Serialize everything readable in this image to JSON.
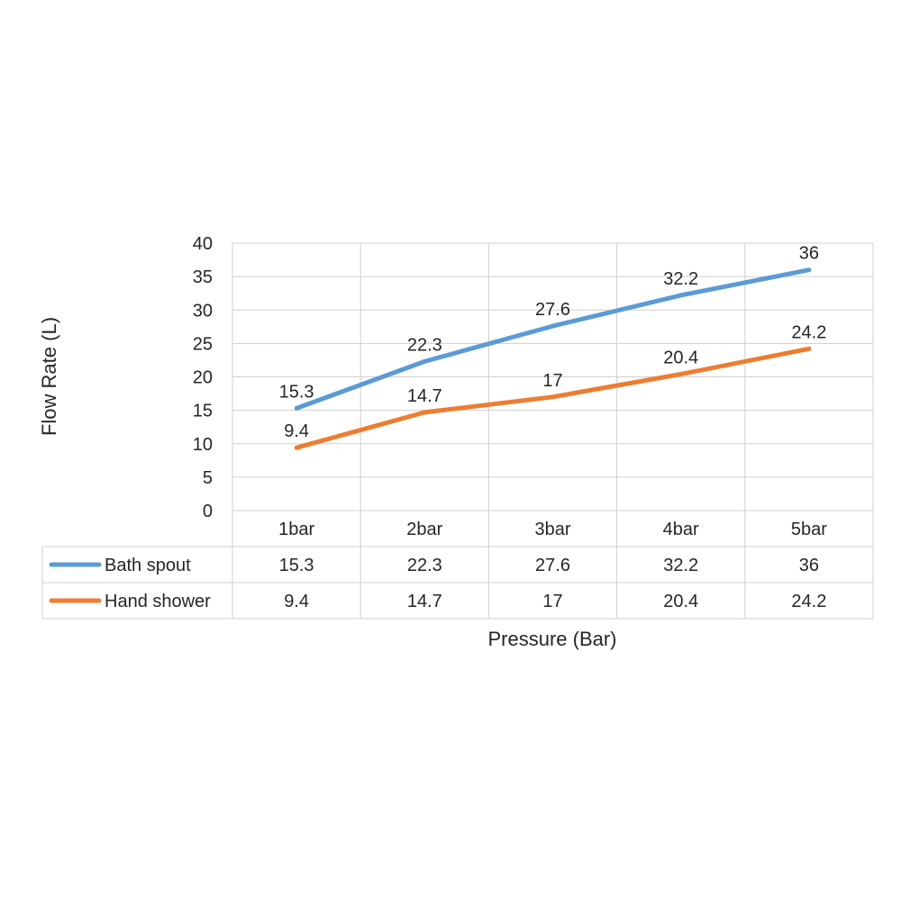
{
  "chart_data": {
    "type": "line",
    "title": "",
    "xlabel": "Pressure (Bar)",
    "ylabel": "Flow Rate (L)",
    "categories": [
      "1bar",
      "2bar",
      "3bar",
      "4bar",
      "5bar"
    ],
    "ylim": [
      0,
      40
    ],
    "yticks": [
      "0",
      "5",
      "10",
      "15",
      "20",
      "25",
      "30",
      "35",
      "40"
    ],
    "grid": true,
    "legend": "data-table",
    "series": [
      {
        "name": "Bath spout",
        "color": "#5B9BD5",
        "values": [
          15.3,
          22.3,
          27.6,
          32.2,
          36
        ],
        "labels": [
          "15.3",
          "22.3",
          "27.6",
          "32.2",
          "36"
        ]
      },
      {
        "name": "Hand shower",
        "color": "#ED7D31",
        "values": [
          9.4,
          14.7,
          17,
          20.4,
          24.2
        ],
        "labels": [
          "9.4",
          "14.7",
          "17",
          "20.4",
          "24.2"
        ]
      }
    ]
  }
}
